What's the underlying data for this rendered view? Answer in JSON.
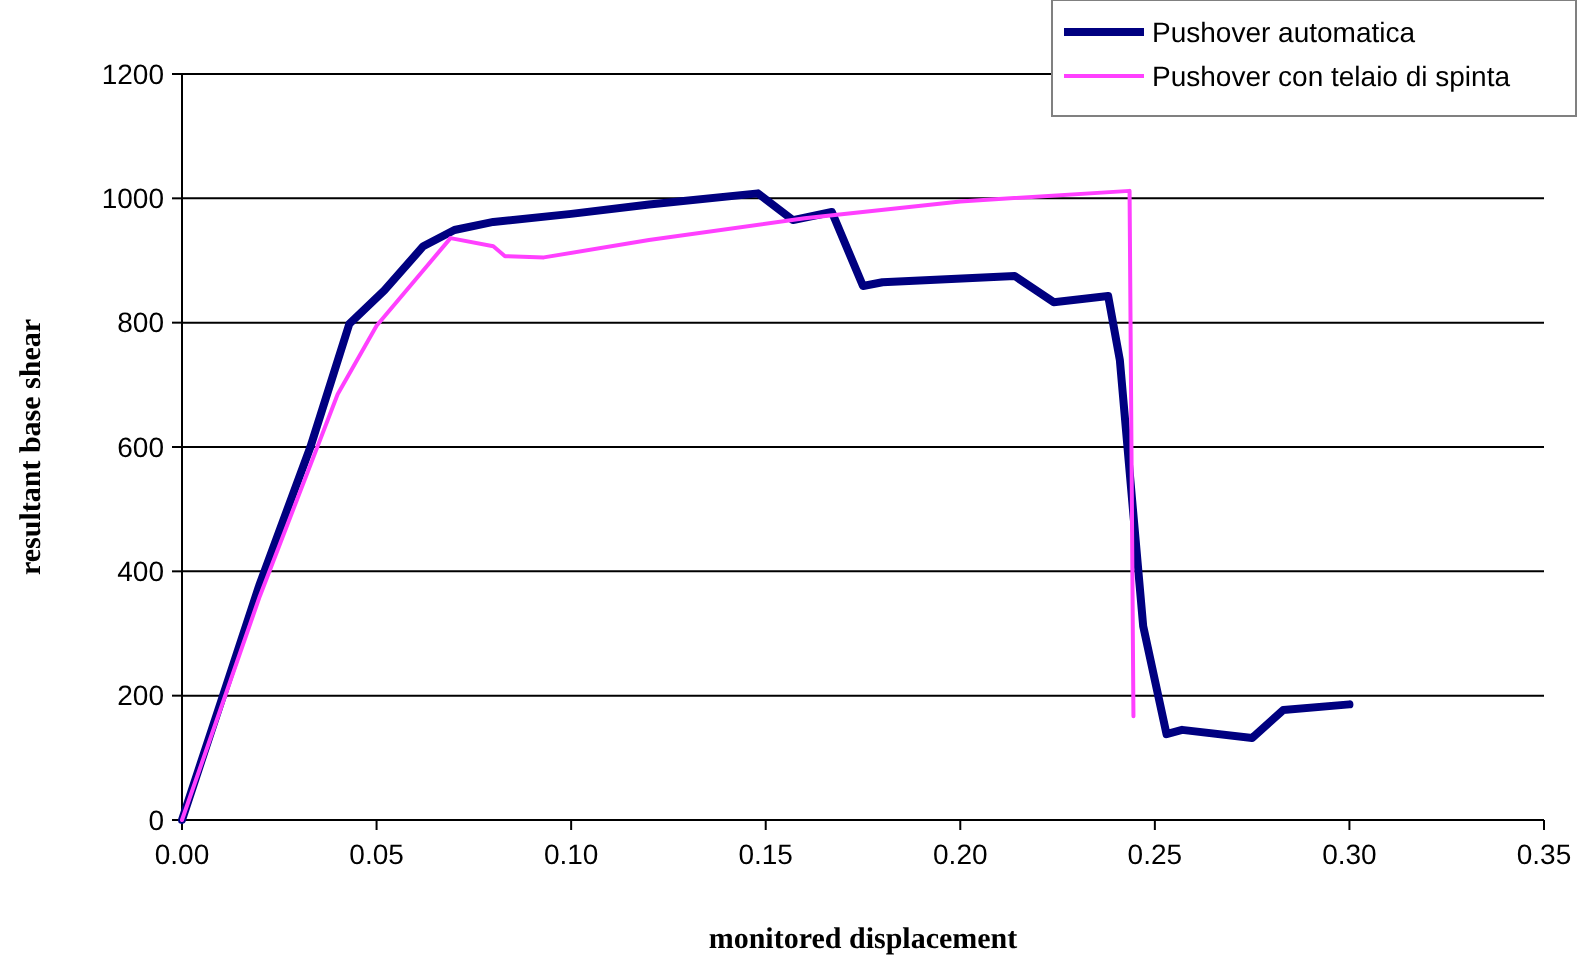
{
  "chart_data": {
    "type": "line",
    "xlabel": "monitored displacement",
    "ylabel": "resultant base shear",
    "xlim": [
      0,
      0.35
    ],
    "xticks": [
      {
        "value": 0,
        "label": "0.00"
      },
      {
        "value": 0.05,
        "label": "0.05"
      },
      {
        "value": 0.1,
        "label": "0.10"
      },
      {
        "value": 0.15,
        "label": "0.15"
      },
      {
        "value": 0.2,
        "label": "0.20"
      },
      {
        "value": 0.25,
        "label": "0.25"
      },
      {
        "value": 0.3,
        "label": "0.30"
      },
      {
        "value": 0.35,
        "label": "0.35"
      }
    ],
    "ylim": [
      0,
      1200
    ],
    "yticks": [
      0,
      200,
      400,
      600,
      800,
      1000,
      1200
    ],
    "grid": "y",
    "legend": "top right",
    "marker": "none",
    "line_style": "solid",
    "series": [
      {
        "name": "Pushover automatica",
        "color": "#000080",
        "x": [
          0,
          0.01,
          0.02,
          0.033,
          0.043,
          0.052,
          0.062,
          0.07,
          0.08,
          0.1,
          0.12,
          0.148,
          0.157,
          0.167,
          0.175,
          0.18,
          0.214,
          0.224,
          0.238,
          0.241,
          0.247,
          0.253,
          0.257,
          0.275,
          0.283,
          0.3
        ],
        "values": [
          0,
          190,
          380,
          600,
          798,
          852,
          923,
          949,
          962,
          975,
          990,
          1008,
          965,
          978,
          859,
          865,
          875,
          833,
          843,
          740,
          312,
          138,
          145,
          132,
          177,
          186
        ]
      },
      {
        "name": "Pushover con telaio di spinta",
        "color": "#ff40ff",
        "x": [
          0,
          0.02,
          0.04,
          0.05,
          0.069,
          0.08,
          0.083,
          0.093,
          0.12,
          0.16,
          0.2,
          0.2435,
          0.2445
        ],
        "values": [
          0,
          360,
          685,
          795,
          936,
          923,
          907,
          905,
          933,
          968,
          995,
          1012,
          167
        ]
      }
    ]
  }
}
